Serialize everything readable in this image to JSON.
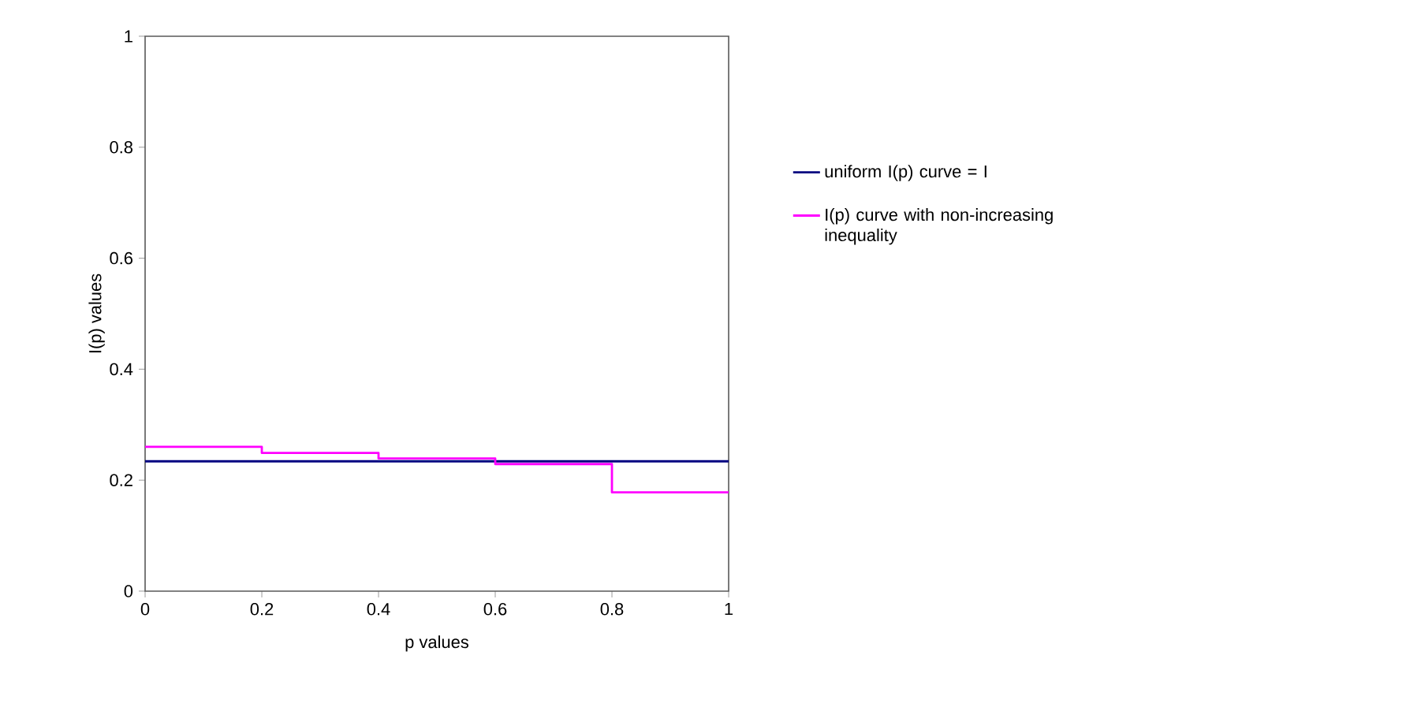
{
  "chart_data": {
    "type": "step",
    "xlabel": "p values",
    "ylabel": "I(p) values",
    "xlim": [
      0,
      1
    ],
    "ylim": [
      0,
      1
    ],
    "xticks": [
      0,
      0.2,
      0.4,
      0.6,
      0.8,
      1
    ],
    "yticks": [
      0,
      0.2,
      0.4,
      0.6,
      0.8,
      1
    ],
    "legend": "right",
    "grid": false,
    "series": [
      {
        "name": "uniform I(p) curve = I",
        "color": "#000080",
        "x": [
          0,
          1
        ],
        "values": [
          0.234,
          0.234
        ]
      },
      {
        "name": "I(p) curve with non-increasing inequality",
        "color": "#ff00ff",
        "x": [
          0,
          0.2,
          0.4,
          0.6,
          0.8,
          1
        ],
        "values": [
          0.26,
          0.249,
          0.239,
          0.229,
          0.178,
          0.178
        ]
      }
    ]
  }
}
